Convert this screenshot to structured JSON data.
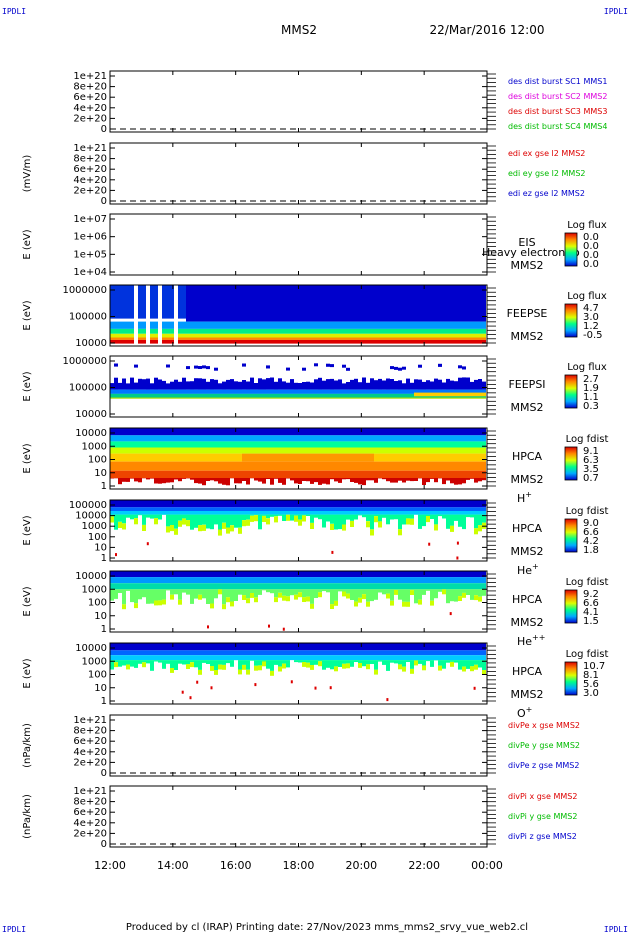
{
  "corner_labels": [
    "IPDLI",
    "IPDLI",
    "IPDLI",
    "IPDLI"
  ],
  "header": {
    "spacecraft": "MMS2",
    "datetime": "22/Mar/2016 12:00"
  },
  "footer": {
    "text": "Produced by cl (IRAP)   Printing date: 27/Nov/2023   mms_mms2_srvy_vue_web2.cl"
  },
  "colors": {
    "red": "#dd0000",
    "magenta": "#dd00dd",
    "green": "#00bb00",
    "blue": "#0000cc"
  },
  "chart_data": {
    "type": "heatmap",
    "x_ticks": [
      "12:00",
      "14:00",
      "16:00",
      "18:00",
      "20:00",
      "22:00",
      "00:00"
    ],
    "xlim": [
      12,
      24
    ],
    "panels": [
      {
        "kind": "line",
        "ylabel": "",
        "yticks": [
          "1e+21",
          "8e+20",
          "6e+20",
          "4e+20",
          "2e+20",
          "0"
        ],
        "legend": [
          {
            "text": "des dist burst SC1 MMS1",
            "color": "blue"
          },
          {
            "text": "des dist burst SC2 MMS2",
            "color": "magenta"
          },
          {
            "text": "des dist burst SC3 MMS3",
            "color": "red"
          },
          {
            "text": "des dist burst SC4 MMS4",
            "color": "green"
          }
        ]
      },
      {
        "kind": "line",
        "ylabel": "(mV/m)",
        "yticks": [
          "1e+21",
          "8e+20",
          "6e+20",
          "4e+20",
          "2e+20",
          "0"
        ],
        "legend": [
          {
            "text": "edi ex gse l2 MMS2",
            "color": "red"
          },
          {
            "text": "edi ey gse l2 MMS2",
            "color": "green"
          },
          {
            "text": "edi ez gse l2 MMS2",
            "color": "blue"
          }
        ]
      },
      {
        "kind": "spec",
        "ylabel": "E (eV)",
        "yticks": [
          "1e+07",
          "1e+06",
          "1e+05",
          "1e+04"
        ],
        "inst": [
          "EIS",
          "MMS2"
        ],
        "overlay": "Heavy electron to",
        "cb_title": "Log flux",
        "cb_values": [
          "0.0",
          "0.0",
          "0.0",
          "0.0"
        ],
        "fill": "none"
      },
      {
        "kind": "spec",
        "ylabel": "E (eV)",
        "yticks": [
          "1000000",
          "100000",
          "10000"
        ],
        "inst": [
          "FEEPSE",
          "MMS2"
        ],
        "cb_title": "Log flux",
        "cb_values": [
          "4.7",
          "3.0",
          "1.2",
          "-0.5"
        ],
        "fill": "feepse"
      },
      {
        "kind": "spec",
        "ylabel": "E (eV)",
        "yticks": [
          "1000000",
          "100000",
          "10000"
        ],
        "inst": [
          "FEEPSI",
          "MMS2"
        ],
        "cb_title": "Log flux",
        "cb_values": [
          "2.7",
          "1.9",
          "1.1",
          "0.3"
        ],
        "fill": "feepsi"
      },
      {
        "kind": "spec",
        "ylabel": "E (eV)",
        "yticks": [
          "10000",
          "1000",
          "100",
          "10",
          "1"
        ],
        "inst": [
          "HPCA",
          "MMS2"
        ],
        "species": "H",
        "species_sup": "+",
        "cb_title": "Log fdist",
        "cb_values": [
          "9.1",
          "6.3",
          "3.5",
          "0.7"
        ],
        "fill": "hplus"
      },
      {
        "kind": "spec",
        "ylabel": "E (eV)",
        "yticks": [
          "100000",
          "10000",
          "1000",
          "100",
          "10",
          "1"
        ],
        "inst": [
          "HPCA",
          "MMS2"
        ],
        "species": "He",
        "species_sup": "+",
        "cb_title": "Log fdist",
        "cb_values": [
          "9.0",
          "6.6",
          "4.2",
          "1.8"
        ],
        "fill": "heplus"
      },
      {
        "kind": "spec",
        "ylabel": "E (eV)",
        "yticks": [
          "10000",
          "1000",
          "100",
          "10",
          "1"
        ],
        "inst": [
          "HPCA",
          "MMS2"
        ],
        "species": "He",
        "species_sup": "++",
        "cb_title": "Log fdist",
        "cb_values": [
          "9.2",
          "6.6",
          "4.1",
          "1.5"
        ],
        "fill": "hepp"
      },
      {
        "kind": "spec",
        "ylabel": "E (eV)",
        "yticks": [
          "10000",
          "1000",
          "100",
          "10",
          "1"
        ],
        "inst": [
          "HPCA",
          "MMS2"
        ],
        "species": "O",
        "species_sup": "+",
        "cb_title": "Log fdist",
        "cb_values": [
          "10.7",
          "8.1",
          "5.6",
          "3.0"
        ],
        "fill": "oplus"
      },
      {
        "kind": "line",
        "ylabel": "(nPa/km)",
        "yticks": [
          "1e+21",
          "8e+20",
          "6e+20",
          "4e+20",
          "2e+20",
          "0"
        ],
        "legend": [
          {
            "text": "divPe x gse MMS2",
            "color": "red"
          },
          {
            "text": "divPe y gse MMS2",
            "color": "green"
          },
          {
            "text": "divPe z gse MMS2",
            "color": "blue"
          }
        ]
      },
      {
        "kind": "line",
        "ylabel": "(nPa/km)",
        "yticks": [
          "1e+21",
          "8e+20",
          "6e+20",
          "4e+20",
          "2e+20",
          "0"
        ],
        "legend": [
          {
            "text": "divPi x gse MMS2",
            "color": "red"
          },
          {
            "text": "divPi y gse MMS2",
            "color": "green"
          },
          {
            "text": "divPi z gse MMS2",
            "color": "blue"
          }
        ]
      }
    ]
  }
}
